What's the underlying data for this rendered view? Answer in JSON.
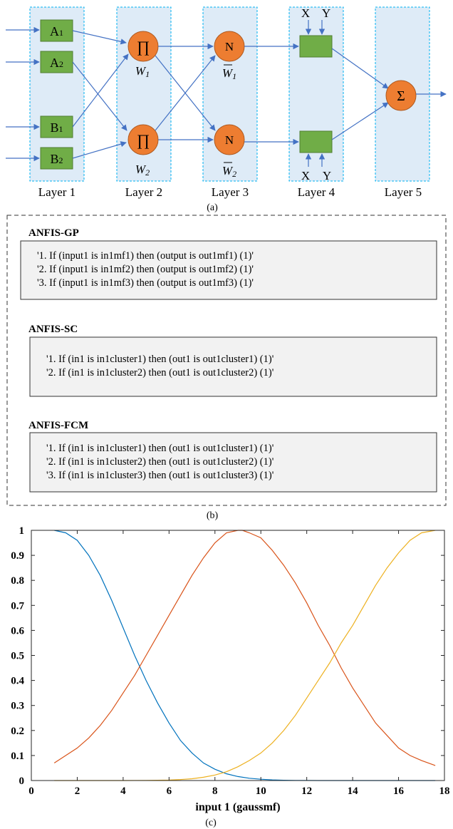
{
  "panel_a": {
    "inputs": {
      "A1": "A",
      "A1_sub": "1",
      "A2": "A",
      "A2_sub": "2",
      "B1": "B",
      "B1_sub": "1",
      "B2": "B",
      "B2_sub": "2"
    },
    "pi_symbol": "∏",
    "w1": "W",
    "w1_sub": "1",
    "w2": "W",
    "w2_sub": "2",
    "n_symbol": "N",
    "wbar1": "W",
    "wbar1_sub": "1",
    "wbar2": "W",
    "wbar2_sub": "2",
    "sigma_symbol": "Σ",
    "x_label": "X",
    "y_label": "Y",
    "layers": [
      "Layer 1",
      "Layer 2",
      "Layer 3",
      "Layer 4",
      "Layer 5"
    ],
    "caption": "(a)",
    "colors": {
      "layer_fill": "#deebf7",
      "layer_border": "#00b0f0",
      "mf_box": "#70ad47",
      "node": "#ed7d31",
      "arrow": "#4472c4"
    }
  },
  "panel_b": {
    "caption": "(b)",
    "sections": [
      {
        "title": "ANFIS-GP",
        "rules": [
          "'1. If (input1 is in1mf1) then (output is out1mf1) (1)'",
          "'2. If (input1 is in1mf2) then (output is out1mf2) (1)'",
          "'3. If (input1 is in1mf3) then (output is out1mf3) (1)'"
        ]
      },
      {
        "title": "ANFIS-SC",
        "rules": [
          "'1. If (in1 is in1cluster1) then (out1 is out1cluster1) (1)'",
          "'2. If (in1 is in1cluster2) then (out1 is out1cluster2) (1)'"
        ]
      },
      {
        "title": "ANFIS-FCM",
        "rules": [
          "'1. If (in1 is in1cluster1) then (out1 is out1cluster1) (1)'",
          "'2. If (in1 is in1cluster2) then (out1 is out1cluster2) (1)'",
          "'3. If (in1 is in1cluster3) then (out1 is out1cluster3) (1)'"
        ]
      }
    ]
  },
  "chart_data": {
    "type": "line",
    "title": "",
    "xlabel": "input 1 (gaussmf)",
    "ylabel": "",
    "xlim": [
      0,
      18
    ],
    "ylim": [
      0,
      1
    ],
    "xticks": [
      0,
      2,
      4,
      6,
      8,
      10,
      12,
      14,
      16,
      18
    ],
    "yticks": [
      0,
      0.1,
      0.2,
      0.3,
      0.4,
      0.5,
      0.6,
      0.7,
      0.8,
      0.9,
      1
    ],
    "xtick_labels": [
      "0",
      "2",
      "4",
      "6",
      "8",
      "10",
      "12",
      "14",
      "16",
      "18"
    ],
    "ytick_labels": [
      "0",
      "0.1",
      "0.2",
      "0.3",
      "0.4",
      "0.5",
      "0.6",
      "0.7",
      "0.8",
      "0.9",
      "1"
    ],
    "grid": false,
    "series": [
      {
        "color": "#0072bd",
        "x": [
          1,
          1.5,
          2,
          2.5,
          3,
          3.5,
          4,
          4.5,
          5,
          5.5,
          6,
          6.5,
          7,
          7.5,
          8,
          8.5,
          9,
          9.5,
          10,
          10.5,
          11,
          11.5,
          12,
          12.5,
          13,
          13.5,
          14,
          14.5,
          15,
          15.5,
          16,
          16.5,
          17,
          17.6
        ],
        "y": [
          1,
          0.99,
          0.96,
          0.9,
          0.82,
          0.72,
          0.61,
          0.5,
          0.4,
          0.31,
          0.23,
          0.16,
          0.11,
          0.07,
          0.045,
          0.027,
          0.016,
          0.009,
          0.005,
          0.0025,
          0.0012,
          0.0006,
          0.0003,
          0.0001,
          0,
          0,
          0,
          0,
          0,
          0,
          0,
          0,
          0,
          0
        ]
      },
      {
        "color": "#d95319",
        "x": [
          1,
          1.5,
          2,
          2.5,
          3,
          3.5,
          4,
          4.5,
          5,
          5.5,
          6,
          6.5,
          7,
          7.5,
          8,
          8.5,
          9,
          9.2,
          9.5,
          10,
          10.5,
          11,
          11.5,
          12,
          12.5,
          13,
          13.5,
          14,
          14.5,
          15,
          15.5,
          16,
          16.5,
          17,
          17.6
        ],
        "y": [
          0.07,
          0.1,
          0.13,
          0.17,
          0.22,
          0.28,
          0.35,
          0.42,
          0.5,
          0.58,
          0.66,
          0.74,
          0.82,
          0.89,
          0.95,
          0.99,
          1,
          1,
          0.99,
          0.97,
          0.92,
          0.86,
          0.79,
          0.71,
          0.62,
          0.54,
          0.45,
          0.37,
          0.3,
          0.23,
          0.18,
          0.13,
          0.1,
          0.08,
          0.06
        ]
      },
      {
        "color": "#edb120",
        "x": [
          1,
          2,
          3,
          4,
          5,
          5.5,
          6,
          6.5,
          7,
          7.5,
          8,
          8.5,
          9,
          9.5,
          10,
          10.5,
          11,
          11.5,
          12,
          12.5,
          13,
          13.5,
          14,
          14.5,
          15,
          15.5,
          16,
          16.5,
          17,
          17.6
        ],
        "y": [
          0,
          0,
          0,
          0,
          0.0005,
          0.001,
          0.002,
          0.004,
          0.007,
          0.013,
          0.022,
          0.035,
          0.055,
          0.08,
          0.11,
          0.15,
          0.2,
          0.26,
          0.33,
          0.4,
          0.47,
          0.55,
          0.62,
          0.7,
          0.78,
          0.85,
          0.91,
          0.96,
          0.99,
          1
        ]
      }
    ]
  },
  "panel_c": {
    "caption": "(c)"
  }
}
